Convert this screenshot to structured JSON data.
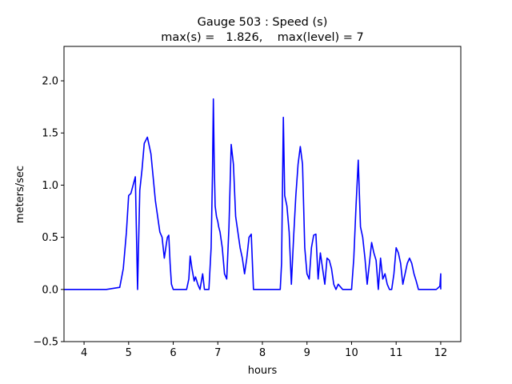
{
  "chart_data": {
    "type": "line",
    "title_line1": "Gauge 503 : Speed (s)",
    "title_line2": "max(s) =   1.826,    max(level) = 7",
    "xlabel": "hours",
    "ylabel": "meters/sec",
    "xlim": [
      3.55,
      12.45
    ],
    "ylim": [
      -0.5,
      2.33
    ],
    "xticks": [
      4,
      5,
      6,
      7,
      8,
      9,
      10,
      11,
      12
    ],
    "xtick_labels": [
      "4",
      "5",
      "6",
      "7",
      "8",
      "9",
      "10",
      "11",
      "12"
    ],
    "yticks": [
      -0.5,
      0.0,
      0.5,
      1.0,
      1.5,
      2.0
    ],
    "ytick_labels": [
      "−0.5",
      "0.0",
      "0.5",
      "1.0",
      "1.5",
      "2.0"
    ],
    "series": [
      {
        "name": "speed",
        "color": "#0000ff",
        "x": [
          3.55,
          4.0,
          4.5,
          4.8,
          4.88,
          4.95,
          5.0,
          5.05,
          5.1,
          5.15,
          5.2,
          5.25,
          5.3,
          5.35,
          5.42,
          5.5,
          5.6,
          5.7,
          5.75,
          5.8,
          5.85,
          5.87,
          5.9,
          5.93,
          5.96,
          6.0,
          6.1,
          6.2,
          6.3,
          6.35,
          6.38,
          6.42,
          6.47,
          6.5,
          6.55,
          6.6,
          6.62,
          6.66,
          6.7,
          6.75,
          6.8,
          6.85,
          6.88,
          6.9,
          6.92,
          6.94,
          6.97,
          7.0,
          7.02,
          7.05,
          7.1,
          7.15,
          7.2,
          7.25,
          7.3,
          7.35,
          7.4,
          7.45,
          7.5,
          7.55,
          7.6,
          7.65,
          7.7,
          7.75,
          7.8,
          7.9,
          8.0,
          8.1,
          8.2,
          8.3,
          8.35,
          8.4,
          8.43,
          8.47,
          8.5,
          8.55,
          8.6,
          8.65,
          8.7,
          8.75,
          8.8,
          8.85,
          8.9,
          8.95,
          9.0,
          9.05,
          9.1,
          9.15,
          9.2,
          9.25,
          9.3,
          9.35,
          9.4,
          9.45,
          9.5,
          9.55,
          9.6,
          9.65,
          9.7,
          9.8,
          9.9,
          10.0,
          10.05,
          10.1,
          10.15,
          10.2,
          10.25,
          10.3,
          10.35,
          10.4,
          10.45,
          10.5,
          10.55,
          10.6,
          10.65,
          10.7,
          10.75,
          10.8,
          10.85,
          10.9,
          10.95,
          11.0,
          11.05,
          11.1,
          11.15,
          11.2,
          11.25,
          11.3,
          11.35,
          11.4,
          11.45,
          11.5,
          11.55,
          11.6,
          11.7,
          11.8,
          11.9,
          11.98,
          12.0,
          12.0
        ],
        "y": [
          0.0,
          0.0,
          0.0,
          0.02,
          0.2,
          0.55,
          0.9,
          0.92,
          1.0,
          1.08,
          0.0,
          0.95,
          1.15,
          1.4,
          1.46,
          1.3,
          0.85,
          0.55,
          0.5,
          0.3,
          0.45,
          0.5,
          0.52,
          0.25,
          0.05,
          0.0,
          0.0,
          0.0,
          0.0,
          0.1,
          0.32,
          0.2,
          0.08,
          0.12,
          0.05,
          0.0,
          0.05,
          0.15,
          0.0,
          0.0,
          0.0,
          0.4,
          1.1,
          1.826,
          1.2,
          0.8,
          0.7,
          0.65,
          0.6,
          0.55,
          0.4,
          0.15,
          0.1,
          0.6,
          1.39,
          1.2,
          0.7,
          0.55,
          0.4,
          0.3,
          0.15,
          0.3,
          0.5,
          0.53,
          0.0,
          0.0,
          0.0,
          0.0,
          0.0,
          0.0,
          0.0,
          0.0,
          0.25,
          1.65,
          0.9,
          0.8,
          0.55,
          0.05,
          0.5,
          0.9,
          1.2,
          1.37,
          1.2,
          0.4,
          0.15,
          0.1,
          0.4,
          0.52,
          0.53,
          0.1,
          0.35,
          0.2,
          0.05,
          0.3,
          0.28,
          0.2,
          0.05,
          0.0,
          0.05,
          0.0,
          0.0,
          0.0,
          0.3,
          0.8,
          1.24,
          0.6,
          0.5,
          0.3,
          0.05,
          0.25,
          0.45,
          0.35,
          0.28,
          0.0,
          0.3,
          0.1,
          0.15,
          0.05,
          0.0,
          0.0,
          0.15,
          0.4,
          0.35,
          0.25,
          0.05,
          0.15,
          0.25,
          0.3,
          0.25,
          0.15,
          0.08,
          0.0,
          0.0,
          0.0,
          0.0,
          0.0,
          0.0,
          0.03,
          0.15,
          0.0
        ]
      }
    ]
  }
}
